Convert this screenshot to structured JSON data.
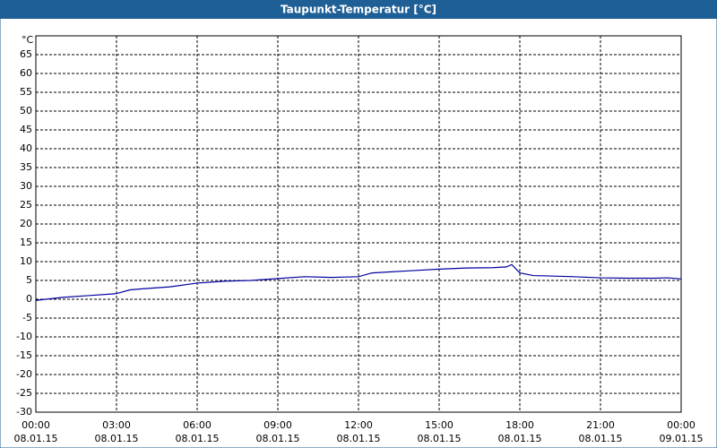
{
  "chart_data": {
    "type": "line",
    "title": "Taupunkt-Temperatur [°C]",
    "y_label": "°C",
    "x": [
      0,
      1,
      2,
      3,
      3.5,
      4,
      5,
      6,
      7,
      8,
      9,
      10,
      11,
      12,
      12.5,
      13,
      14,
      15,
      16,
      17,
      17.5,
      17.7,
      18,
      18.5,
      19,
      20,
      21,
      22,
      23,
      23.5,
      24
    ],
    "series": [
      {
        "name": "Taupunkt-Temperatur",
        "color": "#0000a0",
        "values": [
          -0.3,
          0.5,
          1.0,
          1.5,
          2.5,
          2.8,
          3.3,
          4.3,
          4.8,
          5.0,
          5.5,
          6.0,
          5.8,
          6.0,
          7.0,
          7.2,
          7.6,
          8.0,
          8.3,
          8.4,
          8.6,
          9.2,
          7.0,
          6.3,
          6.2,
          6.0,
          5.7,
          5.6,
          5.6,
          5.7,
          5.4
        ]
      }
    ],
    "xlim": [
      0,
      24
    ],
    "xticks": [
      {
        "value": 0,
        "label": "00:00"
      },
      {
        "value": 3,
        "label": "03:00"
      },
      {
        "value": 6,
        "label": "06:00"
      },
      {
        "value": 9,
        "label": "09:00"
      },
      {
        "value": 12,
        "label": "12:00"
      },
      {
        "value": 15,
        "label": "15:00"
      },
      {
        "value": 18,
        "label": "18:00"
      },
      {
        "value": 21,
        "label": "21:00"
      },
      {
        "value": 24,
        "label": "00:00"
      }
    ],
    "xtick_dates": [
      "08.01.15",
      "08.01.15",
      "08.01.15",
      "08.01.15",
      "08.01.15",
      "08.01.15",
      "08.01.15",
      "08.01.15",
      "09.01.15"
    ],
    "ylim": [
      -30,
      70
    ],
    "yticks": [
      -30,
      -25,
      -20,
      -15,
      -10,
      -5,
      0,
      5,
      10,
      15,
      20,
      25,
      30,
      35,
      40,
      45,
      50,
      55,
      60,
      65
    ],
    "grid": true
  }
}
